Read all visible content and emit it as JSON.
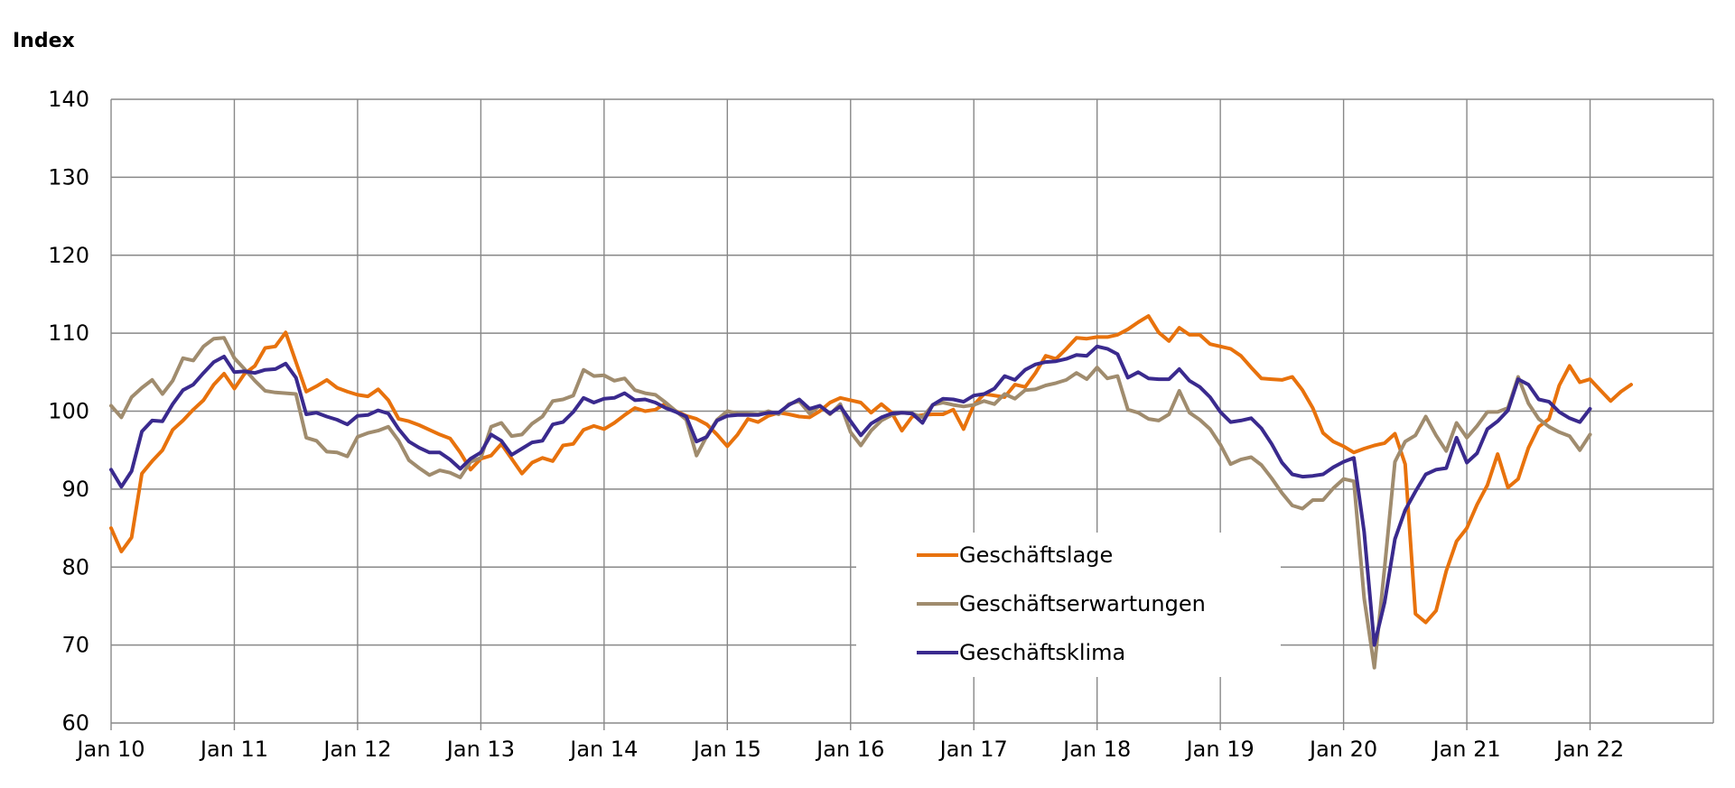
{
  "chart_data": {
    "type": "line",
    "ylabel": "Index",
    "xlabel": "",
    "ylim": [
      60,
      140
    ],
    "yticks": [
      60,
      70,
      80,
      90,
      100,
      110,
      120,
      130,
      140
    ],
    "xlim": [
      "2010-01",
      "2023-01"
    ],
    "xtick_labels": [
      "Jan 10",
      "Jan 11",
      "Jan 12",
      "Jan 13",
      "Jan 14",
      "Jan 15",
      "Jan 16",
      "Jan 17",
      "Jan 18",
      "Jan 19",
      "Jan 20",
      "Jan 21",
      "Jan 22"
    ],
    "grid": true,
    "legend_position": "center-right",
    "start": "2010-01",
    "frequency": "monthly",
    "series": [
      {
        "name": "Geschäftslage",
        "color": "#e8720c",
        "values": [
          85.0,
          82.0,
          83.8,
          92.0,
          93.6,
          95.0,
          97.6,
          98.8,
          100.2,
          101.4,
          103.4,
          104.8,
          102.9,
          104.8,
          105.8,
          108.1,
          108.3,
          110.1,
          106.3,
          102.5,
          103.2,
          104.0,
          103.0,
          102.5,
          102.1,
          101.9,
          102.8,
          101.4,
          99.0,
          98.7,
          98.2,
          97.6,
          97.0,
          96.5,
          94.7,
          92.5,
          93.9,
          94.3,
          95.8,
          93.9,
          92.0,
          93.4,
          94.0,
          93.6,
          95.6,
          95.8,
          97.6,
          98.1,
          97.7,
          98.5,
          99.5,
          100.4,
          100.0,
          100.2,
          101.0,
          100.0,
          99.4,
          99.0,
          98.3,
          97.0,
          95.5,
          97.0,
          99.0,
          98.6,
          99.4,
          99.8,
          99.6,
          99.3,
          99.2,
          100.0,
          101.1,
          101.7,
          101.4,
          101.1,
          99.8,
          100.9,
          99.8,
          97.5,
          99.3,
          99.5,
          99.6,
          99.6,
          100.2,
          97.7,
          100.8,
          102.2,
          102.0,
          101.8,
          103.4,
          103.1,
          104.9,
          107.1,
          106.7,
          108.0,
          109.4,
          109.3,
          109.5,
          109.5,
          109.8,
          110.5,
          111.4,
          112.2,
          110.1,
          109.0,
          110.7,
          109.8,
          109.8,
          108.6,
          108.3,
          108.0,
          107.1,
          105.6,
          104.2,
          104.1,
          104.0,
          104.4,
          102.7,
          100.4,
          97.2,
          96.1,
          95.5,
          94.7,
          95.2,
          95.6,
          95.9,
          97.1,
          93.2,
          74.0,
          72.9,
          74.4,
          79.5,
          83.3,
          85.0,
          88.0,
          90.5,
          94.5,
          90.2,
          91.3,
          95.3,
          98.0,
          99.0,
          103.3,
          105.8,
          103.7,
          104.1,
          102.7,
          101.3,
          102.5,
          103.4
        ]
      },
      {
        "name": "Geschäftserwartungen",
        "color": "#a08c6e",
        "values": [
          100.7,
          99.2,
          101.8,
          103.0,
          104.0,
          102.2,
          103.9,
          106.8,
          106.5,
          108.3,
          109.3,
          109.4,
          106.8,
          105.4,
          103.9,
          102.6,
          102.4,
          102.3,
          102.2,
          96.6,
          96.2,
          94.8,
          94.7,
          94.2,
          96.7,
          97.2,
          97.5,
          98.0,
          96.2,
          93.7,
          92.7,
          91.8,
          92.4,
          92.1,
          91.5,
          93.5,
          94.0,
          98.0,
          98.5,
          96.8,
          97.0,
          98.4,
          99.3,
          101.3,
          101.5,
          102.0,
          105.3,
          104.5,
          104.6,
          103.9,
          104.2,
          102.7,
          102.3,
          102.1,
          101.1,
          100.0,
          98.9,
          94.3,
          96.8,
          98.9,
          100.0,
          99.7,
          99.7,
          99.6,
          100.0,
          99.6,
          100.9,
          101.3,
          99.7,
          100.7,
          99.6,
          100.9,
          97.3,
          95.6,
          97.5,
          98.8,
          99.5,
          99.8,
          99.7,
          99.2,
          100.8,
          101.1,
          100.8,
          100.6,
          100.8,
          101.3,
          100.9,
          102.2,
          101.6,
          102.7,
          102.8,
          103.3,
          103.6,
          104.0,
          104.9,
          104.1,
          105.6,
          104.2,
          104.5,
          100.2,
          99.8,
          99.0,
          98.8,
          99.6,
          102.6,
          99.8,
          98.9,
          97.7,
          95.7,
          93.2,
          93.8,
          94.1,
          93.1,
          91.4,
          89.5,
          87.9,
          87.5,
          88.6,
          88.6,
          90.1,
          91.3,
          91.0,
          76.0,
          67.1,
          80.0,
          93.5,
          96.1,
          96.9,
          99.3,
          96.9,
          94.9,
          98.5,
          96.6,
          98.1,
          99.9,
          99.9,
          100.4,
          104.4,
          101.0,
          99.0,
          98.0,
          97.3,
          96.8,
          95.0,
          97.0
        ]
      },
      {
        "name": "Geschäftsklima",
        "color": "#3a2a8e",
        "values": [
          92.5,
          90.3,
          92.3,
          97.4,
          98.8,
          98.7,
          100.9,
          102.7,
          103.4,
          104.9,
          106.3,
          107.0,
          105.0,
          105.1,
          104.9,
          105.3,
          105.4,
          106.1,
          104.3,
          99.6,
          99.8,
          99.3,
          98.9,
          98.3,
          99.4,
          99.5,
          100.1,
          99.7,
          97.7,
          96.1,
          95.3,
          94.7,
          94.7,
          93.8,
          92.6,
          93.9,
          94.7,
          97.0,
          96.2,
          94.4,
          95.2,
          96.0,
          96.2,
          98.3,
          98.6,
          99.9,
          101.7,
          101.1,
          101.6,
          101.7,
          102.3,
          101.4,
          101.5,
          101.1,
          100.4,
          99.9,
          99.3,
          96.1,
          96.7,
          98.8,
          99.4,
          99.5,
          99.5,
          99.5,
          99.8,
          99.8,
          100.8,
          101.5,
          100.3,
          100.7,
          99.7,
          100.6,
          98.7,
          96.9,
          98.4,
          99.2,
          99.7,
          99.8,
          99.7,
          98.5,
          100.8,
          101.6,
          101.5,
          101.2,
          102.0,
          102.2,
          102.9,
          104.5,
          104.0,
          105.3,
          106.0,
          106.3,
          106.4,
          106.7,
          107.2,
          107.1,
          108.3,
          108.0,
          107.3,
          104.3,
          105.0,
          104.2,
          104.1,
          104.1,
          105.4,
          103.9,
          103.1,
          101.8,
          99.9,
          98.6,
          98.8,
          99.1,
          97.8,
          95.8,
          93.4,
          91.9,
          91.6,
          91.7,
          91.9,
          92.8,
          93.5,
          94.0,
          84.5,
          70.0,
          75.5,
          83.6,
          87.3,
          89.7,
          91.9,
          92.5,
          92.7,
          96.6,
          93.4,
          94.6,
          97.7,
          98.7,
          100.1,
          104.1,
          103.4,
          101.5,
          101.2,
          99.9,
          99.1,
          98.6,
          100.3
        ]
      }
    ]
  }
}
